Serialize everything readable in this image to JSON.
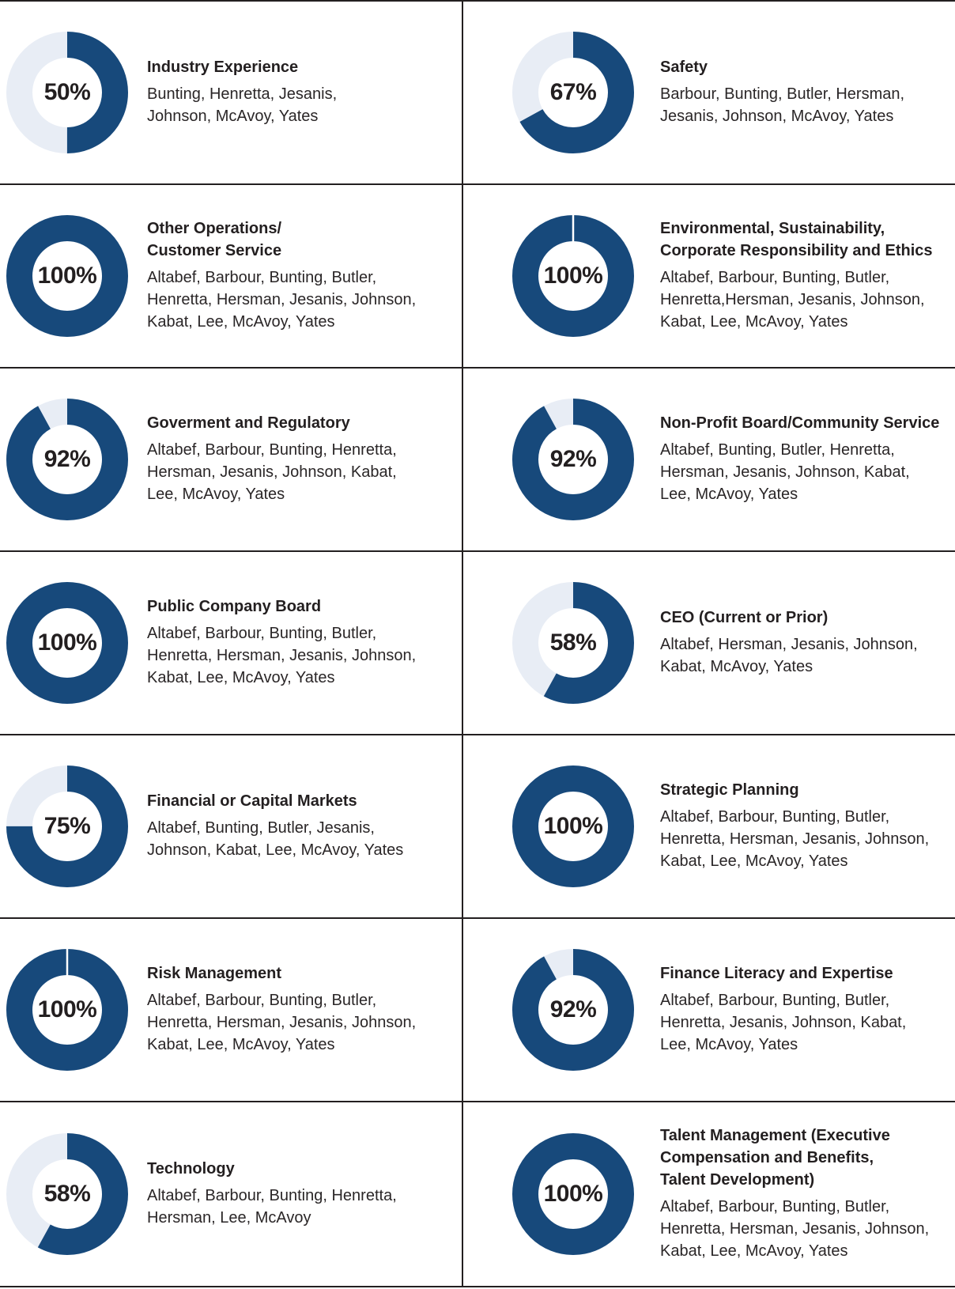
{
  "palette": {
    "donut_fill": "#17497b",
    "donut_track": "#e8edf5",
    "divider": "#231f20",
    "text": "#231f20"
  },
  "chart_data": {
    "type": "donut-grid",
    "description": "Board skills matrix: percent of directors with each skill, with director names",
    "columns": 2,
    "rows": 7,
    "cells": [
      {
        "value": 50,
        "value_label": "50%",
        "title_lines": [
          "Industry Experience"
        ],
        "members_lines": [
          "Bunting, Henretta, Jesanis,",
          "Johnson, McAvoy, Yates"
        ],
        "notch": false
      },
      {
        "value": 67,
        "value_label": "67%",
        "title_lines": [
          "Safety"
        ],
        "members_lines": [
          "Barbour, Bunting, Butler, Hersman,",
          "Jesanis, Johnson, McAvoy, Yates"
        ],
        "notch": false
      },
      {
        "value": 100,
        "value_label": "100%",
        "title_lines": [
          "Other Operations/",
          "Customer Service"
        ],
        "members_lines": [
          "Altabef, Barbour, Bunting, Butler,",
          "Henretta, Hersman, Jesanis, Johnson,",
          "Kabat, Lee, McAvoy, Yates"
        ],
        "notch": false
      },
      {
        "value": 100,
        "value_label": "100%",
        "title_lines": [
          "Environmental, Sustainability,",
          "Corporate Responsibility and Ethics"
        ],
        "members_lines": [
          "Altabef, Barbour, Bunting, Butler,",
          "Henretta,Hersman, Jesanis, Johnson,",
          "Kabat, Lee, McAvoy, Yates"
        ],
        "notch": true
      },
      {
        "value": 92,
        "value_label": "92%",
        "title_lines": [
          "Goverment and Regulatory"
        ],
        "members_lines": [
          "Altabef, Barbour, Bunting, Henretta,",
          "Hersman, Jesanis, Johnson, Kabat,",
          "Lee, McAvoy, Yates"
        ],
        "notch": false
      },
      {
        "value": 92,
        "value_label": "92%",
        "title_lines": [
          "Non-Profit Board/Community Service"
        ],
        "members_lines": [
          "Altabef, Bunting, Butler, Henretta,",
          "Hersman, Jesanis, Johnson, Kabat,",
          "Lee, McAvoy, Yates"
        ],
        "notch": false
      },
      {
        "value": 100,
        "value_label": "100%",
        "title_lines": [
          "Public Company Board"
        ],
        "members_lines": [
          "Altabef, Barbour, Bunting, Butler,",
          "Henretta, Hersman, Jesanis, Johnson,",
          "Kabat, Lee, McAvoy, Yates"
        ],
        "notch": false
      },
      {
        "value": 58,
        "value_label": "58%",
        "title_lines": [
          "CEO (Current or Prior)"
        ],
        "members_lines": [
          "Altabef, Hersman, Jesanis, Johnson,",
          "Kabat, McAvoy, Yates"
        ],
        "notch": false
      },
      {
        "value": 75,
        "value_label": "75%",
        "title_lines": [
          "Financial or Capital Markets"
        ],
        "members_lines": [
          "Altabef, Bunting, Butler, Jesanis,",
          "Johnson, Kabat, Lee, McAvoy, Yates"
        ],
        "notch": false
      },
      {
        "value": 100,
        "value_label": "100%",
        "title_lines": [
          "Strategic Planning"
        ],
        "members_lines": [
          "Altabef, Barbour, Bunting, Butler,",
          "Henretta, Hersman, Jesanis, Johnson,",
          "Kabat, Lee, McAvoy, Yates"
        ],
        "notch": false
      },
      {
        "value": 100,
        "value_label": "100%",
        "title_lines": [
          "Risk Management"
        ],
        "members_lines": [
          "Altabef, Barbour, Bunting, Butler,",
          "Henretta, Hersman, Jesanis, Johnson,",
          "Kabat, Lee, McAvoy, Yates"
        ],
        "notch": true
      },
      {
        "value": 92,
        "value_label": "92%",
        "title_lines": [
          "Finance Literacy and Expertise"
        ],
        "members_lines": [
          "Altabef, Barbour, Bunting, Butler,",
          "Henretta, Jesanis, Johnson, Kabat,",
          "Lee, McAvoy, Yates"
        ],
        "notch": false
      },
      {
        "value": 58,
        "value_label": "58%",
        "title_lines": [
          "Technology"
        ],
        "members_lines": [
          "Altabef, Barbour, Bunting, Henretta,",
          "Hersman, Lee, McAvoy"
        ],
        "notch": false
      },
      {
        "value": 100,
        "value_label": "100%",
        "title_lines": [
          "Talent Management (Executive",
          "Compensation and Benefits,",
          "Talent Development)"
        ],
        "members_lines": [
          "Altabef, Barbour, Bunting, Butler,",
          "Henretta, Hersman, Jesanis, Johnson,",
          "Kabat, Lee, McAvoy, Yates"
        ],
        "notch": false
      }
    ]
  }
}
